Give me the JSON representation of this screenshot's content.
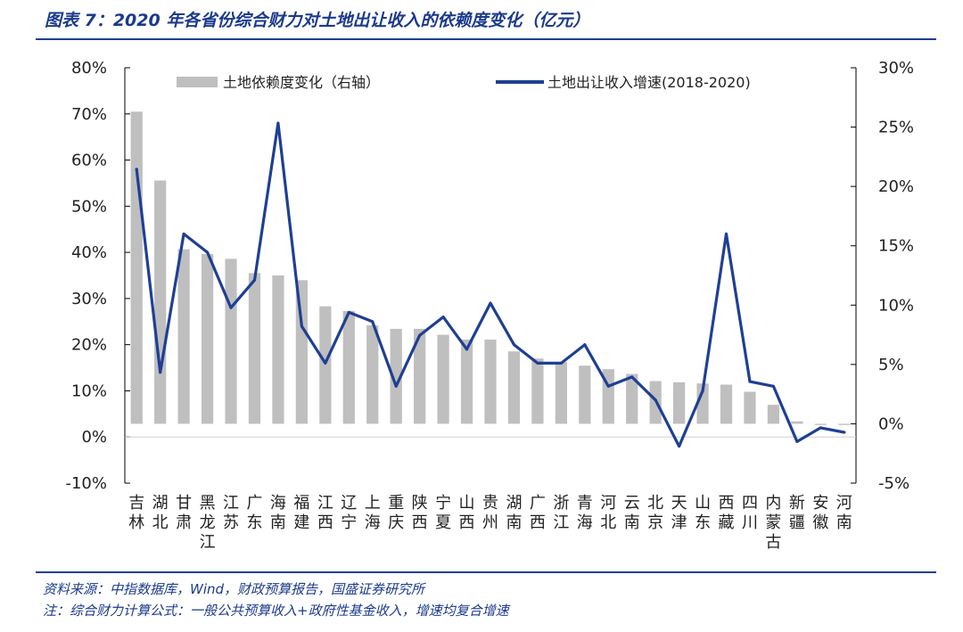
{
  "figure": {
    "title": "图表 7：2020 年各省份综合财力对土地出让收入的依赖度变化（亿元）",
    "source": "资料来源：中指数据库，Wind，财政预算报告，国盛证券研究所",
    "note": "注：综合财力计算公式：一般公共预算收入+政府性基金收入，增速均复合增速"
  },
  "chart_data": {
    "type": "bar+line",
    "categories": [
      "吉林",
      "湖北",
      "甘肃",
      "黑龙江",
      "江苏",
      "广东",
      "海南",
      "福建",
      "江西",
      "辽宁",
      "上海",
      "重庆",
      "陕西",
      "宁夏",
      "山西",
      "贵州",
      "湖南",
      "广西",
      "浙江",
      "青海",
      "河北",
      "云南",
      "北京",
      "天津",
      "山东",
      "西藏",
      "四川",
      "内蒙古",
      "新疆",
      "安徽",
      "河南"
    ],
    "series": [
      {
        "name": "土地依赖度变化（右轴）",
        "kind": "bar",
        "axis": "right",
        "color": "#bfbfbf",
        "values": [
          0.263,
          0.205,
          0.147,
          0.143,
          0.139,
          0.127,
          0.125,
          0.121,
          0.099,
          0.095,
          0.083,
          0.08,
          0.08,
          0.075,
          0.071,
          0.071,
          0.061,
          0.055,
          0.052,
          0.049,
          0.046,
          0.042,
          0.036,
          0.035,
          0.034,
          0.033,
          0.027,
          0.016,
          0.002,
          -0.001,
          -0.001
        ]
      },
      {
        "name": "土地出让收入增速(2018-2020)",
        "kind": "line",
        "axis": "left",
        "color": "#1f3f93",
        "values": [
          0.58,
          0.14,
          0.44,
          0.4,
          0.28,
          0.34,
          0.68,
          0.24,
          0.16,
          0.27,
          0.25,
          0.11,
          0.22,
          0.26,
          0.19,
          0.29,
          0.2,
          0.16,
          0.16,
          0.2,
          0.11,
          0.13,
          0.08,
          -0.02,
          0.1,
          0.44,
          0.12,
          0.11,
          -0.01,
          0.02,
          0.01
        ]
      }
    ],
    "left_axis": {
      "ylim": [
        -0.1,
        0.8
      ],
      "ticks": [
        "80%",
        "70%",
        "60%",
        "50%",
        "40%",
        "30%",
        "20%",
        "10%",
        "0%",
        "-10%"
      ]
    },
    "right_axis": {
      "ylim": [
        -0.05,
        0.3
      ],
      "ticks": [
        "30%",
        "25%",
        "20%",
        "15%",
        "10%",
        "5%",
        "0%",
        "-5%"
      ]
    },
    "legend": [
      "土地依赖度变化（右轴）",
      "土地出让收入增速(2018-2020)"
    ],
    "legend_position": "top",
    "grid": false
  }
}
